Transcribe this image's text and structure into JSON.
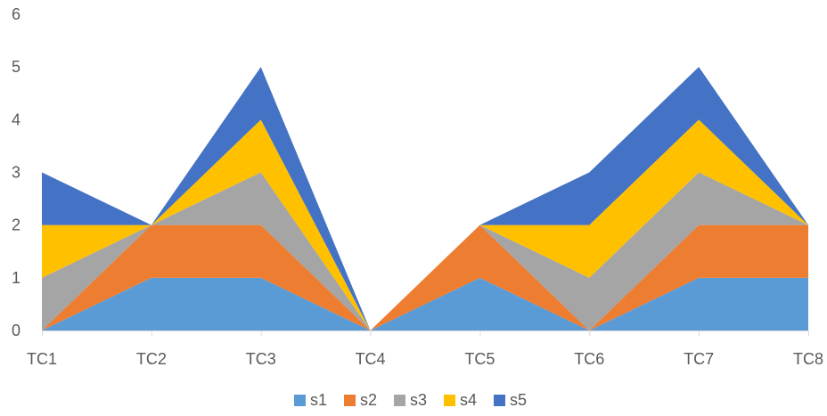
{
  "chart_data": {
    "type": "area",
    "stacked": true,
    "categories": [
      "TC1",
      "TC2",
      "TC3",
      "TC4",
      "TC5",
      "TC6",
      "TC7",
      "TC8"
    ],
    "series": [
      {
        "name": "s1",
        "color": "#5B9BD5",
        "values": [
          0,
          1,
          1,
          0,
          1,
          0,
          1,
          1
        ]
      },
      {
        "name": "s2",
        "color": "#ED7D31",
        "values": [
          0,
          1,
          1,
          0,
          1,
          0,
          1,
          1
        ]
      },
      {
        "name": "s3",
        "color": "#A5A5A5",
        "values": [
          1,
          0,
          1,
          0,
          0,
          1,
          1,
          0
        ]
      },
      {
        "name": "s4",
        "color": "#FFC000",
        "values": [
          1,
          0,
          1,
          0,
          0,
          1,
          1,
          0
        ]
      },
      {
        "name": "s5",
        "color": "#4472C4",
        "values": [
          1,
          0,
          1,
          0,
          0,
          1,
          1,
          0
        ]
      }
    ],
    "yticks": [
      "0",
      "1",
      "2",
      "3",
      "4",
      "5",
      "6"
    ],
    "ylim": [
      0,
      6
    ],
    "title": "",
    "xlabel": "",
    "ylabel": "",
    "grid": false,
    "legend": "bottom"
  }
}
